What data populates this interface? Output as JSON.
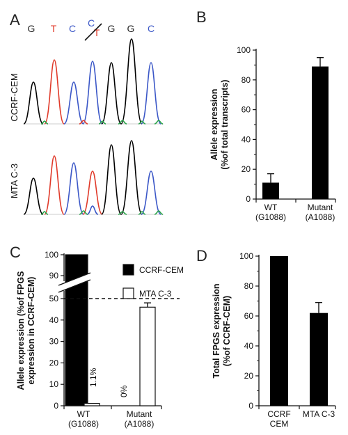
{
  "figure": {
    "panel_letters": [
      "A",
      "B",
      "C",
      "D"
    ],
    "colors": {
      "dark_bar": "#000000",
      "light_bar": "#ffffff",
      "trace_black": "#000000",
      "trace_red": "#e03a2a",
      "trace_blue": "#3b57c7",
      "trace_green": "#2aa34a"
    }
  },
  "panel_a": {
    "sequence": [
      {
        "base": "G",
        "color": "#222222"
      },
      {
        "base": "T",
        "color": "#e03a2a"
      },
      {
        "base": "C",
        "color": "#3b57c7"
      },
      {
        "base": "C",
        "color": "#3b57c7"
      },
      {
        "base": "G",
        "color": "#222222"
      },
      {
        "base": "G",
        "color": "#222222"
      },
      {
        "base": "C",
        "color": "#3b57c7"
      }
    ],
    "variant_alt": {
      "base": "T",
      "color": "#e03a2a"
    },
    "samples": [
      "CCRF-CEM",
      "MTA C-3"
    ]
  },
  "chart_data": [
    {
      "panel": "B",
      "type": "bar",
      "categories": [
        "WT\n(G1088)",
        "Mutant\n(A1088)"
      ],
      "values": [
        11,
        89
      ],
      "errors": [
        6,
        6
      ],
      "ylabel_lines": [
        "Allele expression",
        "(%of total transcripts)"
      ],
      "yticks": [
        0,
        20,
        40,
        60,
        80,
        100
      ],
      "ylim": [
        0,
        100
      ]
    },
    {
      "panel": "C",
      "type": "bar",
      "categories": [
        "WT\n(G1088)",
        "Mutant\n(A1088)"
      ],
      "series": [
        {
          "name": "CCRF-CEM",
          "values": [
            100,
            0
          ],
          "errors": [
            0,
            0
          ],
          "color": "#000000"
        },
        {
          "name": "MTA C-3",
          "values": [
            1.1,
            46
          ],
          "errors": [
            0,
            2
          ],
          "color": "#ffffff"
        }
      ],
      "value_labels": [
        "1.1%",
        "0%"
      ],
      "reference_line": 50,
      "yticks_lower": [
        0,
        10,
        20,
        30,
        40,
        50
      ],
      "yticks_upper": [
        90,
        100
      ],
      "axis_break": [
        50,
        90
      ],
      "ylabel_lines": [
        "Allele expression (%of FPGS",
        "expression in CCRF-CEM)"
      ]
    },
    {
      "panel": "D",
      "type": "bar",
      "categories": [
        "CCRF\nCEM",
        "MTA C-3"
      ],
      "values": [
        100,
        62
      ],
      "errors": [
        0,
        7
      ],
      "ylabel_lines": [
        "Total FPGS expression",
        "(%of CCRF-CEM)"
      ],
      "yticks": [
        0,
        20,
        40,
        60,
        80,
        100
      ],
      "ylim": [
        0,
        100
      ]
    }
  ]
}
